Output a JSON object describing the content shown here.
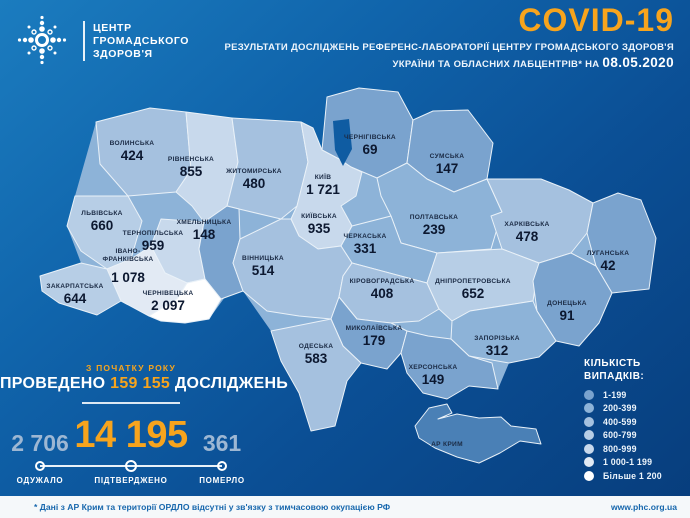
{
  "header": {
    "logo_line1": "ЦЕНТР",
    "logo_line2": "ГРОМАДСЬКОГО",
    "logo_line3": "ЗДОРОВ'Я",
    "title": "COVID-19",
    "subtitle_line1": "РЕЗУЛЬТАТИ ДОСЛІДЖЕНЬ РЕФЕРЕНС-ЛАБОРАТОРІЇ ЦЕНТРУ ГРОМАДСЬКОГО ЗДОРОВ'Я",
    "subtitle_line2": "УКРАЇНИ ТА ОБЛАСНИХ ЛАБЦЕНТРІВ* НА",
    "date": "08.05.2020"
  },
  "chart_data": {
    "type": "heatmap",
    "title": "COVID-19 — підтверджені випадки за областями України на 08.05.2020",
    "legend_position": "bottom-right",
    "regions": [
      {
        "id": "volyn",
        "name": "ВОЛИНСЬКА",
        "value": "424"
      },
      {
        "id": "rivne",
        "name": "РІВНЕНСЬКА",
        "value": "855"
      },
      {
        "id": "zhytomyr",
        "name": "ЖИТОМИРСЬКА",
        "value": "480"
      },
      {
        "id": "kyiv_city",
        "name": "КИЇВ",
        "value": "1 721"
      },
      {
        "id": "chernihiv",
        "name": "ЧЕРНІГІВСЬКА",
        "value": "69"
      },
      {
        "id": "sumy",
        "name": "СУМСЬКА",
        "value": "147"
      },
      {
        "id": "lviv",
        "name": "ЛЬВІВСЬКА",
        "value": "660"
      },
      {
        "id": "ternopil",
        "name": "ТЕРНОПІЛЬСЬКА",
        "value": "959"
      },
      {
        "id": "khmelnytskyi",
        "name": "ХМЕЛЬНИЦЬКА",
        "value": "148"
      },
      {
        "id": "kyivska",
        "name": "КИЇВСЬКА",
        "value": "935"
      },
      {
        "id": "poltava",
        "name": "ПОЛТАВСЬКА",
        "value": "239"
      },
      {
        "id": "kharkiv",
        "name": "ХАРКІВСЬКА",
        "value": "478"
      },
      {
        "id": "ivano_frankivsk",
        "name": "ІВАНО-ФРАНКІВСЬКА",
        "name_lines": [
          "ІВАНО-",
          "ФРАНКІВСЬКА"
        ],
        "value": "1 078"
      },
      {
        "id": "cherkasy",
        "name": "ЧЕРКАСЬКА",
        "value": "331"
      },
      {
        "id": "luhansk",
        "name": "ЛУГАНСЬКА",
        "value": "42"
      },
      {
        "id": "zakarpattia",
        "name": "ЗАКАРПАТСЬКА",
        "value": "644"
      },
      {
        "id": "vinnytsia",
        "name": "ВІННИЦЬКА",
        "value": "514"
      },
      {
        "id": "kirovohrad",
        "name": "КІРОВОГРАДСЬКА",
        "value": "408"
      },
      {
        "id": "dnipro",
        "name": "ДНІПРОПЕТРОВСЬКА",
        "value": "652"
      },
      {
        "id": "chernivtsi",
        "name": "ЧЕРНІВЕЦЬКА",
        "value": "2 097"
      },
      {
        "id": "donetsk",
        "name": "ДОНЕЦЬКА",
        "value": "91"
      },
      {
        "id": "mykolaiv",
        "name": "МИКОЛАЇВСЬКА",
        "value": "179"
      },
      {
        "id": "zaporizhzhia",
        "name": "ЗАПОРІЗЬКА",
        "value": "312"
      },
      {
        "id": "odesa",
        "name": "ОДЕСЬКА",
        "value": "583"
      },
      {
        "id": "kherson",
        "name": "ХЕРСОНСЬКА",
        "value": "149"
      },
      {
        "id": "crimea",
        "name": "АР КРИМ",
        "value": null
      }
    ],
    "no_data_color": "#4a80b6"
  },
  "stats": {
    "tests_top_label": "З ПОЧАТКУ РОКУ",
    "tests_prefix": "ПРОВЕДЕНО",
    "tests_value": "159 155",
    "tests_suffix": "ДОСЛІДЖЕНЬ",
    "recovered": {
      "value": "2 706",
      "label": "ОДУЖАЛО"
    },
    "confirmed": {
      "value": "14 195",
      "label": "ПІДТВЕРДЖЕНО"
    },
    "died": {
      "value": "361",
      "label": "ПОМЕРЛО"
    }
  },
  "legend": {
    "title_line1": "КІЛЬКІСТЬ",
    "title_line2": "ВИПАДКІВ:",
    "items": [
      {
        "label": "1-199",
        "color": "#7aa3ce"
      },
      {
        "label": "200-399",
        "color": "#8db3d8"
      },
      {
        "label": "400-599",
        "color": "#a5c1df"
      },
      {
        "label": "600-799",
        "color": "#b7cee6"
      },
      {
        "label": "800-999",
        "color": "#c8d9ec"
      },
      {
        "label": "1 000-1 199",
        "color": "#e2eaf4"
      },
      {
        "label": "Більше 1 200",
        "color": "#ffffff"
      }
    ]
  },
  "footer": {
    "note": "* Дані з АР Крим та території ОРДЛО відсутні у зв'язку з тимчасовою окупацією РФ",
    "site": "www.phc.org.ua"
  },
  "colors": {
    "accent_orange": "#f7a41d",
    "muted_stat": "#9db7d3",
    "footer_text": "#1767ad"
  }
}
